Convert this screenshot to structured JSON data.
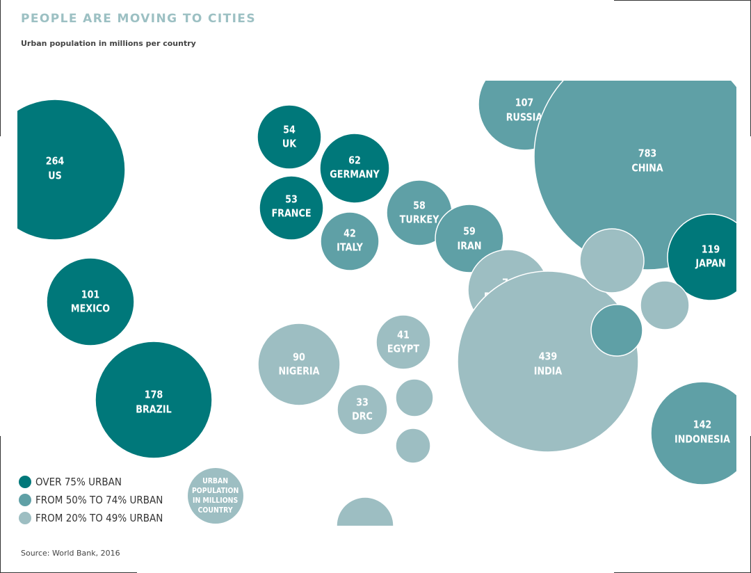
{
  "title": "PEOPLE ARE MOVING TO CITIES",
  "subtitle": "Urban population in millions per country",
  "source": "Source: World Bank, 2016",
  "colors": {
    "over75": "#00787a",
    "from50to74": "#5fa0a6",
    "from20to49": "#9dbec2",
    "label": "#ffffff"
  },
  "legend": [
    {
      "label": "OVER 75% URBAN",
      "category": "over75"
    },
    {
      "label": "FROM 50% TO 74% URBAN",
      "category": "from50to74"
    },
    {
      "label": "FROM 20% TO 49% URBAN",
      "category": "from20to49"
    }
  ],
  "key_bubble": {
    "text": "URBAN\nPOPULATION\nIN MILLIONS\nCOUNTRY"
  },
  "chart_data": {
    "type": "bubble",
    "title": "PEOPLE ARE MOVING TO CITIES",
    "subtitle": "Urban population in millions per country",
    "unit": "millions",
    "points": [
      {
        "country": "US",
        "value": 264,
        "category": "over75"
      },
      {
        "country": "MEXICO",
        "value": 101,
        "category": "over75"
      },
      {
        "country": "BRAZIL",
        "value": 178,
        "category": "over75"
      },
      {
        "country": "UK",
        "value": 54,
        "category": "over75"
      },
      {
        "country": "GERMANY",
        "value": 62,
        "category": "over75"
      },
      {
        "country": "FRANCE",
        "value": 53,
        "category": "over75"
      },
      {
        "country": "ITALY",
        "value": 42,
        "category": "from50to74"
      },
      {
        "country": "TURKEY",
        "value": 58,
        "category": "from50to74"
      },
      {
        "country": "IRAN",
        "value": 59,
        "category": "from50to74"
      },
      {
        "country": "RUSSIA",
        "value": 107,
        "category": "from50to74"
      },
      {
        "country": "CHINA",
        "value": 783,
        "category": "from50to74"
      },
      {
        "country": "JAPAN",
        "value": 119,
        "category": "over75"
      },
      {
        "country": "PAKISTAN",
        "value": 76,
        "category": "from20to49"
      },
      {
        "country": "INDIA",
        "value": 439,
        "category": "from20to49"
      },
      {
        "country": "INDONESIA",
        "value": 142,
        "category": "from50to74"
      },
      {
        "country": "NIGERIA",
        "value": 90,
        "category": "from20to49"
      },
      {
        "country": "EGYPT",
        "value": 41,
        "category": "from20to49"
      },
      {
        "country": "DRC",
        "value": 33,
        "category": "from20to49"
      },
      {
        "country": "",
        "value": null,
        "category": "from20to49"
      },
      {
        "country": "",
        "value": null,
        "category": "from20to49"
      },
      {
        "country": "",
        "value": null,
        "category": "from20to49"
      },
      {
        "country": "",
        "value": null,
        "category": "from20to49"
      },
      {
        "country": "",
        "value": null,
        "category": "from20to49"
      },
      {
        "country": "",
        "value": null,
        "category": "from50to74"
      }
    ]
  }
}
